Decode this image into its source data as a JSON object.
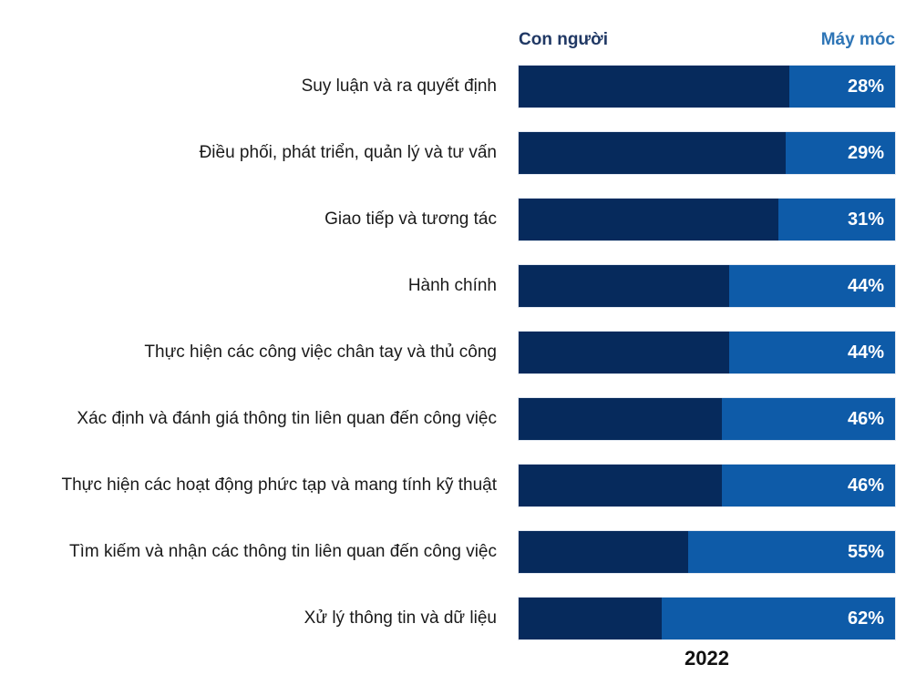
{
  "header": {
    "left_label": "Con người",
    "right_label": "Máy móc"
  },
  "footer": {
    "year": "2022"
  },
  "colors": {
    "human_bar": "#062a5c",
    "machine_bar": "#0e5ba8",
    "human_header_text": "#203864",
    "machine_header_text": "#2e75b6",
    "percent_text": "#ffffff"
  },
  "chart_data": {
    "type": "bar",
    "orientation": "horizontal-stacked",
    "title": "",
    "xlabel": "2022",
    "ylabel": "",
    "xlim": [
      0,
      100
    ],
    "grid": false,
    "legend_position": "top",
    "categories": [
      "Suy luận và ra quyết định",
      "Điều phối, phát triển, quản lý và tư vấn",
      "Giao tiếp và tương tác",
      "Hành chính",
      "Thực hiện các công việc chân tay và thủ công",
      "Xác định và đánh giá thông tin liên quan đến công việc",
      "Thực hiện các hoạt động phức tạp và mang tính kỹ thuật",
      "Tìm kiếm và nhận các thông tin liên quan đến công việc",
      "Xử lý thông tin và dữ liệu"
    ],
    "series": [
      {
        "name": "Con người",
        "values": [
          72,
          71,
          69,
          56,
          56,
          54,
          54,
          45,
          38
        ]
      },
      {
        "name": "Máy móc",
        "values": [
          28,
          29,
          31,
          44,
          44,
          46,
          46,
          55,
          62
        ]
      }
    ],
    "value_labels": [
      "28%",
      "29%",
      "31%",
      "44%",
      "44%",
      "46%",
      "46%",
      "55%",
      "62%"
    ]
  }
}
